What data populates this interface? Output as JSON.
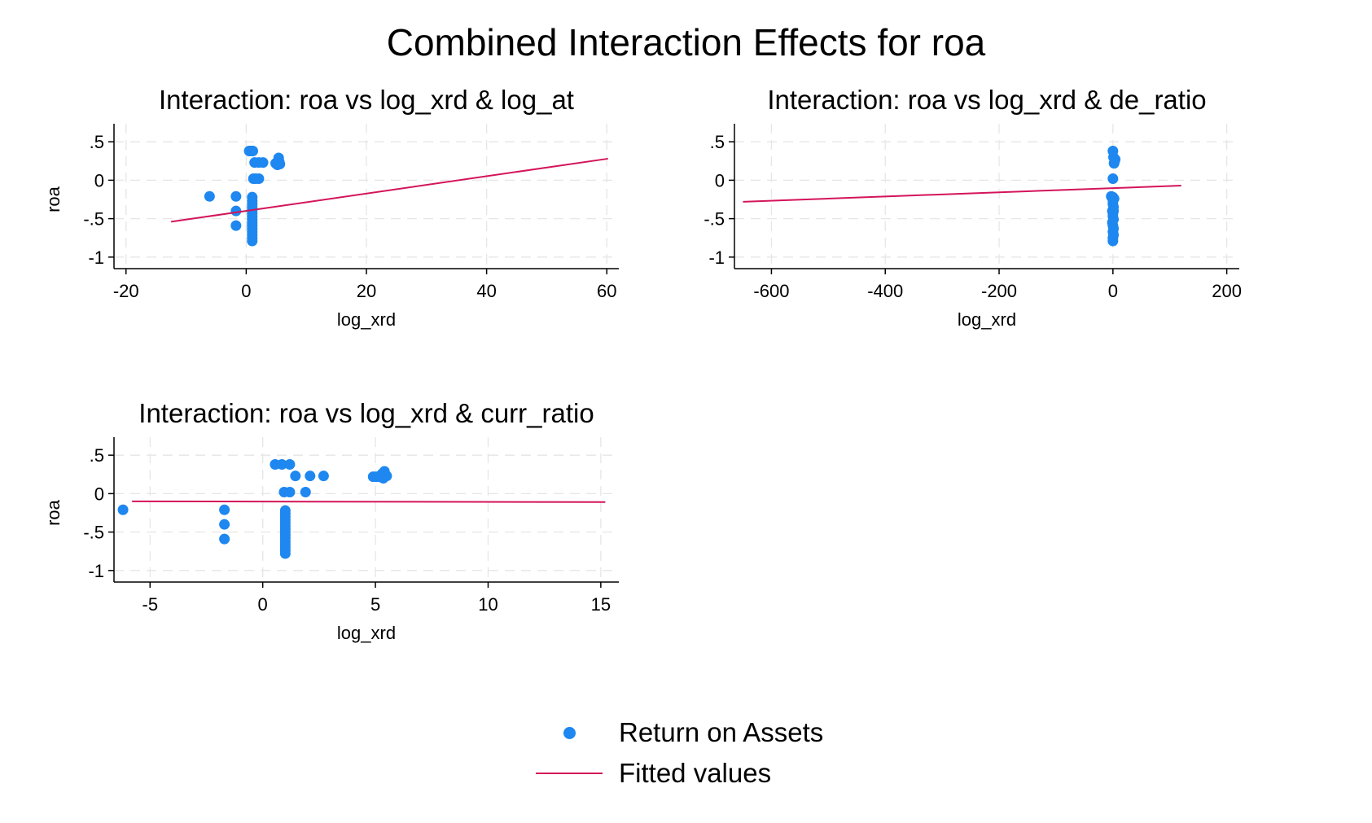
{
  "figure": {
    "title": "Combined Interaction Effects for roa",
    "colors": {
      "points": "#1e87f0",
      "fit": "#d4145a",
      "grid": "#e6e6e6",
      "axis": "#000000"
    }
  },
  "legend": {
    "items": [
      {
        "label": "Return on Assets",
        "kind": "dot"
      },
      {
        "label": "Fitted values",
        "kind": "line"
      }
    ]
  },
  "chart_data": [
    {
      "type": "scatter",
      "title": "Interaction: roa vs log_xrd & log_at",
      "xlabel": "log_xrd",
      "ylabel": "roa",
      "xlim": [
        -22,
        62
      ],
      "ylim": [
        -1.15,
        0.65
      ],
      "xticks": [
        -20,
        0,
        20,
        40,
        60
      ],
      "xtick_labels": [
        "-20",
        "0",
        "20",
        "40",
        "60"
      ],
      "yticks": [
        -1,
        -0.5,
        0,
        0.5
      ],
      "ytick_labels": [
        "-1",
        "-.5",
        "0",
        ".5"
      ],
      "grid": true,
      "series": [
        {
          "name": "Return on Assets",
          "kind": "points",
          "points": [
            [
              -6.1,
              -0.21
            ],
            [
              -1.7,
              -0.21
            ],
            [
              -1.7,
              -0.4
            ],
            [
              -1.7,
              -0.59
            ],
            [
              0.5,
              0.38
            ],
            [
              0.8,
              0.38
            ],
            [
              1.1,
              0.38
            ],
            [
              1.4,
              0.23
            ],
            [
              2.1,
              0.23
            ],
            [
              2.8,
              0.23
            ],
            [
              1.2,
              0.02
            ],
            [
              1.6,
              0.02
            ],
            [
              2.1,
              0.02
            ],
            [
              1.0,
              -0.22
            ],
            [
              1.0,
              -0.27
            ],
            [
              1.0,
              -0.31
            ],
            [
              1.0,
              -0.35
            ],
            [
              1.0,
              -0.39
            ],
            [
              1.0,
              -0.43
            ],
            [
              1.0,
              -0.47
            ],
            [
              1.0,
              -0.51
            ],
            [
              1.0,
              -0.55
            ],
            [
              1.0,
              -0.59
            ],
            [
              1.0,
              -0.63
            ],
            [
              1.0,
              -0.67
            ],
            [
              1.0,
              -0.71
            ],
            [
              1.0,
              -0.75
            ],
            [
              1.0,
              -0.79
            ],
            [
              4.9,
              0.22
            ],
            [
              5.1,
              0.22
            ],
            [
              5.3,
              0.25
            ],
            [
              5.4,
              0.29
            ],
            [
              5.5,
              0.24
            ],
            [
              5.2,
              0.2
            ],
            [
              5.6,
              0.21
            ]
          ]
        },
        {
          "name": "Fitted values",
          "kind": "line",
          "points": [
            [
              -12.5,
              -0.54
            ],
            [
              60.2,
              0.28
            ]
          ]
        }
      ]
    },
    {
      "type": "scatter",
      "title": "Interaction: roa vs log_xrd & de_ratio",
      "xlabel": "log_xrd",
      "ylabel": "roa",
      "xlim": [
        -665,
        222
      ],
      "ylim": [
        -1.15,
        0.65
      ],
      "xticks": [
        -600,
        -400,
        -200,
        0,
        200
      ],
      "xtick_labels": [
        "-600",
        "-400",
        "-200",
        "0",
        "200"
      ],
      "yticks": [
        -1,
        -0.5,
        0,
        0.5
      ],
      "ytick_labels": [
        "-1",
        "-.5",
        "0",
        ".5"
      ],
      "grid": true,
      "series": [
        {
          "name": "Return on Assets",
          "kind": "points",
          "points": [
            [
              0,
              0.38
            ],
            [
              1,
              0.3
            ],
            [
              3,
              0.25
            ],
            [
              2,
              0.22
            ],
            [
              4,
              0.27
            ],
            [
              0,
              0.02
            ],
            [
              -3,
              -0.21
            ],
            [
              0,
              -0.22
            ],
            [
              2,
              -0.24
            ],
            [
              0,
              -0.27
            ],
            [
              0,
              -0.31
            ],
            [
              1,
              -0.35
            ],
            [
              -1,
              -0.4
            ],
            [
              1,
              -0.4
            ],
            [
              0,
              -0.43
            ],
            [
              0,
              -0.47
            ],
            [
              1,
              -0.51
            ],
            [
              -1,
              -0.55
            ],
            [
              0,
              -0.59
            ],
            [
              1,
              -0.63
            ],
            [
              0,
              -0.67
            ],
            [
              1,
              -0.71
            ],
            [
              0,
              -0.75
            ],
            [
              0,
              -0.79
            ]
          ]
        },
        {
          "name": "Fitted values",
          "kind": "line",
          "points": [
            [
              -650,
              -0.28
            ],
            [
              120,
              -0.07
            ]
          ]
        }
      ]
    },
    {
      "type": "scatter",
      "title": "Interaction: roa vs log_xrd & curr_ratio",
      "xlabel": "log_xrd",
      "ylabel": "roa",
      "xlim": [
        -6.6,
        15.8
      ],
      "ylim": [
        -1.15,
        0.65
      ],
      "xticks": [
        -5,
        0,
        5,
        10,
        15
      ],
      "xtick_labels": [
        "-5",
        "0",
        "5",
        "10",
        "15"
      ],
      "yticks": [
        -1,
        -0.5,
        0,
        0.5
      ],
      "ytick_labels": [
        "-1",
        "-.5",
        "0",
        ".5"
      ],
      "grid": true,
      "series": [
        {
          "name": "Return on Assets",
          "kind": "points",
          "points": [
            [
              -6.2,
              -0.21
            ],
            [
              -1.7,
              -0.21
            ],
            [
              -1.7,
              -0.4
            ],
            [
              -1.7,
              -0.59
            ],
            [
              0.55,
              0.38
            ],
            [
              0.85,
              0.38
            ],
            [
              1.2,
              0.38
            ],
            [
              1.45,
              0.23
            ],
            [
              2.1,
              0.23
            ],
            [
              2.7,
              0.23
            ],
            [
              0.95,
              0.02
            ],
            [
              1.2,
              0.02
            ],
            [
              1.9,
              0.02
            ],
            [
              1.0,
              -0.22
            ],
            [
              1.0,
              -0.26
            ],
            [
              1.0,
              -0.3
            ],
            [
              1.0,
              -0.34
            ],
            [
              1.0,
              -0.38
            ],
            [
              1.0,
              -0.42
            ],
            [
              1.0,
              -0.46
            ],
            [
              1.0,
              -0.5
            ],
            [
              1.0,
              -0.54
            ],
            [
              1.0,
              -0.58
            ],
            [
              1.0,
              -0.62
            ],
            [
              1.0,
              -0.66
            ],
            [
              1.0,
              -0.7
            ],
            [
              1.0,
              -0.74
            ],
            [
              1.0,
              -0.78
            ],
            [
              4.9,
              0.22
            ],
            [
              5.05,
              0.22
            ],
            [
              5.2,
              0.22
            ],
            [
              5.3,
              0.26
            ],
            [
              5.4,
              0.29
            ],
            [
              5.5,
              0.23
            ],
            [
              5.35,
              0.2
            ]
          ]
        },
        {
          "name": "Fitted values",
          "kind": "line",
          "points": [
            [
              -5.8,
              -0.1
            ],
            [
              15.2,
              -0.11
            ]
          ]
        }
      ]
    }
  ]
}
